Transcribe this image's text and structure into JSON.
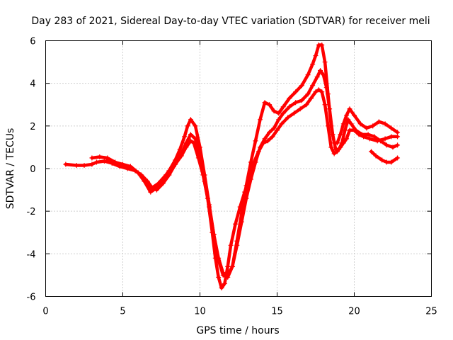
{
  "chart_data": {
    "type": "scatter",
    "title": "Day 283 of 2021, Sidereal Day-to-day VTEC variation (SDTVAR) for receiver meli",
    "xlabel": "GPS time / hours",
    "ylabel": "SDTVAR / TECUs",
    "xlim": [
      0,
      25
    ],
    "ylim": [
      -6,
      6
    ],
    "xticks": [
      "0",
      "5",
      "10",
      "15",
      "20",
      "25"
    ],
    "yticks": [
      "-6",
      "-4",
      "-2",
      "0",
      "2",
      "4",
      "6"
    ],
    "grid": true,
    "marker": "+",
    "color": "#ff0000",
    "series": [
      {
        "x": [
          1.3,
          2,
          2.5,
          3,
          3.3,
          3.8,
          4.3,
          4.8,
          5.3,
          5.8,
          6.2,
          6.6,
          6.9,
          7.3,
          7.8,
          8.3,
          8.8,
          9.1,
          9.4,
          9.6,
          9.9,
          10.2,
          10.5,
          10.8,
          11,
          11.2,
          11.4,
          11.6,
          11.8,
          12,
          12.3,
          12.6,
          12.9,
          13.2,
          13.5,
          13.8,
          14.1,
          14.4,
          14.7,
          15,
          15.3,
          15.7,
          16.1,
          16.5,
          16.9,
          17.2,
          17.5,
          17.7,
          17.9,
          18.1,
          18.3,
          18.5,
          18.7,
          18.9,
          19.1,
          19.3,
          19.5,
          19.7,
          20,
          20.3,
          20.6,
          21,
          21.5,
          22,
          22.4,
          22.8
        ],
        "y": [
          0.2,
          0.15,
          0.15,
          0.2,
          0.3,
          0.35,
          0.25,
          0.1,
          0.0,
          -0.1,
          -0.3,
          -0.6,
          -0.9,
          -0.7,
          -0.3,
          0.1,
          0.6,
          1.0,
          1.3,
          1.2,
          0.5,
          -0.3,
          -1.4,
          -3.0,
          -4.2,
          -5.1,
          -5.6,
          -5.4,
          -4.6,
          -3.6,
          -2.6,
          -1.8,
          -1.1,
          -0.4,
          0.3,
          0.8,
          1.2,
          1.3,
          1.5,
          1.8,
          2.1,
          2.4,
          2.6,
          2.8,
          3.0,
          3.3,
          3.6,
          3.7,
          3.6,
          3.0,
          2.0,
          1.0,
          0.7,
          0.8,
          1.0,
          1.2,
          1.4,
          1.8,
          1.8,
          1.6,
          1.5,
          1.4,
          1.3,
          1.4,
          1.5,
          1.5
        ]
      },
      {
        "x": [
          3,
          3.5,
          4,
          4.5,
          5,
          5.5,
          6,
          6.4,
          6.8,
          7.2,
          7.6,
          8,
          8.4,
          8.8,
          9.1,
          9.4,
          9.7,
          10,
          10.3,
          10.6,
          10.9,
          11.2,
          11.5,
          11.8,
          12.1,
          12.4,
          12.7,
          13,
          13.3,
          13.6,
          13.9,
          14.2,
          14.5,
          14.8,
          15.1,
          15.4,
          15.8,
          16.2,
          16.6,
          17,
          17.3,
          17.6,
          17.8,
          18,
          18.2,
          18.4,
          18.6,
          18.8,
          19,
          19.2,
          19.4,
          19.6,
          19.8,
          20.1,
          20.5,
          20.9,
          21.3,
          21.7,
          22.1,
          22.5,
          22.8
        ],
        "y": [
          0.5,
          0.55,
          0.5,
          0.3,
          0.15,
          0.05,
          -0.2,
          -0.5,
          -0.9,
          -1.0,
          -0.7,
          -0.3,
          0.2,
          0.7,
          1.2,
          1.6,
          1.4,
          0.5,
          -0.6,
          -1.8,
          -3.1,
          -4.2,
          -4.9,
          -5.0,
          -4.6,
          -3.6,
          -2.5,
          -1.4,
          -0.5,
          0.3,
          1.0,
          1.4,
          1.7,
          1.9,
          2.3,
          2.6,
          2.9,
          3.1,
          3.2,
          3.5,
          3.9,
          4.3,
          4.6,
          4.4,
          3.8,
          2.8,
          1.6,
          0.9,
          0.9,
          1.2,
          1.8,
          2.3,
          2.1,
          1.8,
          1.6,
          1.6,
          1.5,
          1.3,
          1.1,
          1.0,
          1.1
        ]
      },
      {
        "x": [
          4,
          4.5,
          5,
          5.5,
          6,
          6.4,
          6.8,
          7.2,
          7.6,
          8,
          8.4,
          8.7,
          9,
          9.2,
          9.4,
          9.7,
          10,
          10.3,
          10.6,
          10.9,
          11.2,
          11.5,
          11.8,
          12.1,
          12.4,
          12.7,
          13,
          13.3,
          13.6,
          13.9,
          14.2,
          14.5,
          14.8,
          15.1,
          15.4,
          15.8,
          16.2,
          16.6,
          17,
          17.3,
          17.5,
          17.7,
          17.9,
          18.1,
          18.3,
          18.5,
          18.7,
          18.9,
          19.1,
          19.3,
          19.5,
          19.7,
          20,
          20.4,
          20.8,
          21.2,
          21.6,
          22,
          22.4,
          22.8
        ],
        "y": [
          0.4,
          0.3,
          0.2,
          0.1,
          -0.2,
          -0.6,
          -1.1,
          -0.9,
          -0.5,
          -0.1,
          0.4,
          0.9,
          1.5,
          2.0,
          2.3,
          2.0,
          1.0,
          -0.3,
          -1.7,
          -3.1,
          -4.3,
          -5.0,
          -5.1,
          -4.6,
          -3.4,
          -2.1,
          -0.8,
          0.3,
          1.3,
          2.3,
          3.1,
          3.0,
          2.7,
          2.6,
          2.9,
          3.3,
          3.6,
          3.9,
          4.4,
          4.9,
          5.3,
          5.8,
          5.8,
          5.0,
          3.5,
          2.0,
          1.2,
          1.2,
          1.6,
          2.1,
          2.5,
          2.8,
          2.5,
          2.1,
          1.9,
          2.0,
          2.2,
          2.1,
          1.9,
          1.7
        ]
      },
      {
        "x": [
          21.1,
          21.4,
          21.8,
          22.1,
          22.4,
          22.8
        ],
        "y": [
          0.8,
          0.6,
          0.4,
          0.3,
          0.3,
          0.5
        ]
      }
    ]
  }
}
